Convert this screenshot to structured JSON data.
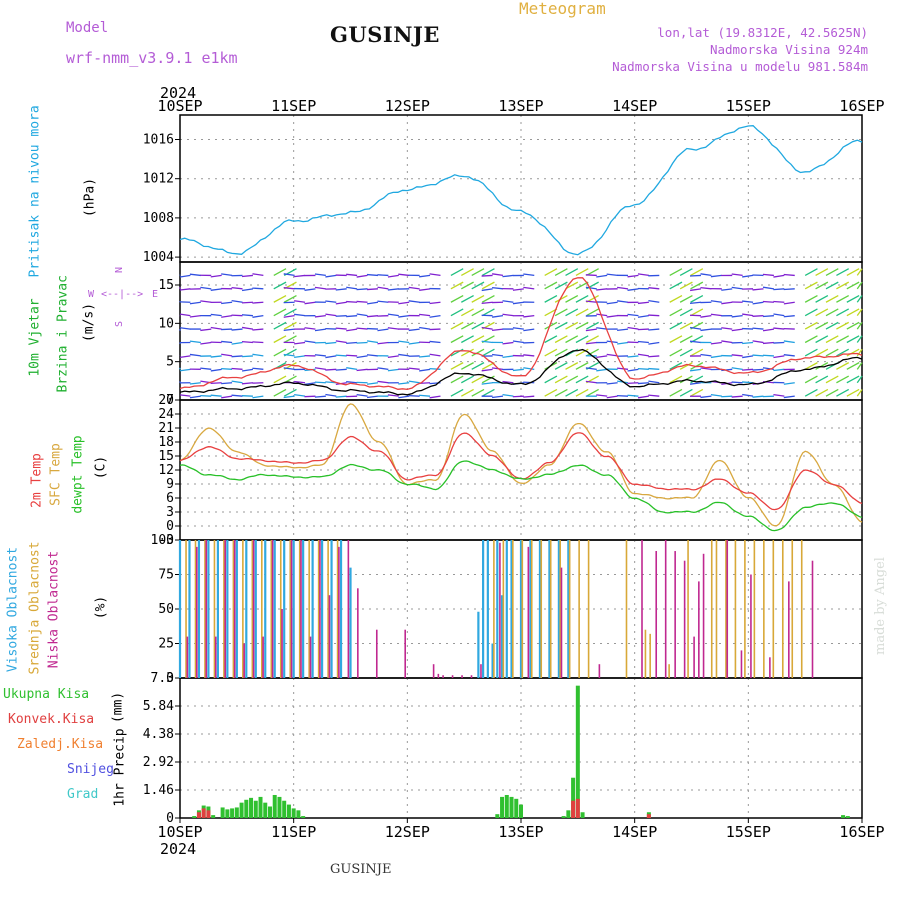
{
  "header": {
    "model_label": "Model",
    "model_value": "wrf-nmm_v3.9.1 e1km",
    "station": "GUSINJE",
    "meteogram": "Meteogram",
    "lonlat": "lon,lat (19.8312E, 42.5625N)",
    "elev": "Nadmorska Visina 924m",
    "elev_model": "Nadmorska Visina u modelu 981.584m",
    "year_top": "2024",
    "year_bottom": "2024",
    "bottom_name": "GUSINJE",
    "credit": "made by Angel"
  },
  "axis_dates": [
    "10SEP",
    "11SEP",
    "12SEP",
    "13SEP",
    "14SEP",
    "15SEP",
    "16SEP"
  ],
  "panel_labels": {
    "pressure": [
      "Pritisak na nivou mora",
      "(hPa)"
    ],
    "wind": [
      "10m Vjetar",
      "Brzina i Pravac",
      "(m/s)"
    ],
    "compass": [
      "N",
      "W",
      "E",
      "S"
    ],
    "temp": [
      "2m Temp",
      "SFC Temp",
      "dewpt Temp",
      "(C)"
    ],
    "cloud": [
      "Visoka Oblacnost",
      "Srednja Oblacnost",
      "Niska Oblacnost",
      "(%)"
    ],
    "precip": [
      "1hr Precip",
      "(mm)"
    ],
    "precip_legend": [
      "Ukupna Kisa",
      "Konvek.Kisa",
      "Zaledj.Kisa",
      "Snijeg",
      "Grad"
    ]
  },
  "colors": {
    "pressure": "#20a8e0",
    "temp2m": "#e84040",
    "sfc": "#d8a840",
    "dew": "#28c028",
    "high": "#30a8e0",
    "mid": "#d8a838",
    "low": "#c02890",
    "total": "#30c030",
    "convective": "#e04040",
    "freezing": "#f08030",
    "snow": "#5050e0",
    "hail": "#40c8c8",
    "wind_speed": "#000000",
    "wind_gust": "#e84040"
  },
  "chart_data": [
    {
      "type": "line",
      "title": "",
      "ylabel": "Pritisak na nivou mora (hPa)",
      "ylim": [
        1003.5,
        1018.5
      ],
      "yticks": [
        1004,
        1008,
        1012,
        1016
      ],
      "grid": true,
      "x_unit": "hours from 10SEP 00",
      "x": [
        0,
        12,
        24,
        36,
        48,
        60,
        72,
        84,
        96,
        108,
        120,
        132,
        144
      ],
      "series": [
        {
          "values": [
            1005.8,
            1004.4,
            1007.7,
            1008.5,
            1010.9,
            1012.3,
            1008.6,
            1004.3,
            1009.4,
            1015.0,
            1017.3,
            1012.7,
            1015.9
          ]
        }
      ]
    },
    {
      "type": "line",
      "title": "",
      "ylabel": "10m Vjetar Brzina i Pravac (m/s)",
      "ylim": [
        0,
        18
      ],
      "yticks": [
        0,
        5,
        10,
        15
      ],
      "grid": true,
      "x": [
        0,
        12,
        24,
        36,
        48,
        60,
        72,
        84,
        96,
        108,
        120,
        132,
        144
      ],
      "series": [
        {
          "values": [
            1.0,
            1.5,
            2.2,
            1.2,
            0.8,
            3.5,
            2.0,
            6.5,
            1.8,
            2.5,
            2.0,
            4.0,
            5.5
          ]
        },
        {
          "values": [
            1.5,
            3.0,
            4.5,
            2.0,
            1.5,
            6.5,
            3.0,
            16.0,
            2.8,
            4.5,
            3.5,
            5.5,
            6.0
          ]
        }
      ]
    },
    {
      "type": "line",
      "title": "",
      "ylabel": "Temp (C)",
      "ylim": [
        -3,
        27
      ],
      "yticks": [
        -3,
        0,
        3,
        6,
        9,
        12,
        15,
        18,
        21,
        24,
        27
      ],
      "grid": true,
      "x": [
        0,
        6,
        12,
        18,
        24,
        30,
        36,
        42,
        48,
        54,
        60,
        66,
        72,
        78,
        84,
        90,
        96,
        102,
        108,
        114,
        120,
        126,
        132,
        138,
        144
      ],
      "series": [
        {
          "name": "2m Temp",
          "values": [
            14,
            17,
            14.5,
            14,
            13.5,
            14,
            19,
            16,
            10,
            11,
            20,
            15,
            10,
            13.5,
            20,
            15,
            9,
            8,
            7.8,
            10,
            7,
            3.5,
            12,
            9,
            5
          ]
        },
        {
          "name": "SFC Temp",
          "values": [
            14,
            21,
            16,
            13,
            12.5,
            13,
            26,
            18,
            9,
            10,
            24,
            16,
            9,
            13,
            22,
            16,
            7,
            6,
            6,
            14,
            6,
            0,
            16,
            9,
            1
          ]
        },
        {
          "name": "dewpt Temp",
          "values": [
            13,
            11,
            10,
            11,
            10.5,
            10.5,
            13,
            12,
            9,
            8,
            14,
            12,
            10,
            11,
            13,
            11,
            6,
            3,
            3,
            5,
            2,
            -1,
            4,
            5,
            2
          ]
        }
      ]
    },
    {
      "type": "bar",
      "title": "",
      "ylabel": "Oblacnost (%)",
      "ylim": [
        0,
        100
      ],
      "yticks": [
        0,
        25,
        50,
        75,
        100
      ],
      "grid": true,
      "series": [
        {
          "name": "Visoka Oblacnost",
          "x": [
            0,
            2,
            4,
            6,
            8,
            10,
            12,
            14,
            16,
            18,
            20,
            22,
            24,
            26,
            28,
            30,
            32,
            34,
            36,
            63,
            64,
            65,
            66,
            67,
            68,
            69,
            70,
            72,
            74,
            76,
            78,
            80,
            82
          ],
          "values": [
            100,
            100,
            100,
            100,
            100,
            100,
            100,
            100,
            100,
            100,
            100,
            100,
            100,
            100,
            100,
            100,
            100,
            100,
            80,
            48,
            100,
            100,
            25,
            100,
            60,
            100,
            100,
            100,
            100,
            100,
            100,
            100,
            100
          ]
        },
        {
          "name": "Srednja Oblacnost",
          "x": [
            1,
            3,
            5,
            7,
            9,
            11,
            13,
            15,
            17,
            19,
            21,
            23,
            25,
            27,
            29,
            31,
            33,
            66,
            68,
            70,
            72,
            74,
            76,
            78,
            80,
            82,
            84,
            86,
            94,
            98,
            99,
            103,
            107,
            112,
            113,
            115,
            117,
            119,
            121,
            123,
            125,
            127,
            129,
            131
          ],
          "values": [
            100,
            100,
            100,
            100,
            100,
            100,
            100,
            100,
            100,
            100,
            100,
            100,
            100,
            100,
            100,
            100,
            100,
            100,
            100,
            100,
            100,
            100,
            100,
            100,
            100,
            100,
            100,
            100,
            100,
            35,
            32,
            10,
            100,
            100,
            100,
            100,
            100,
            100,
            100,
            100,
            100,
            100,
            100,
            100
          ]
        },
        {
          "name": "Niska Oblacnost",
          "x": [
            1,
            3,
            5,
            7,
            9,
            11,
            13,
            15,
            17,
            19,
            21,
            23,
            25,
            27,
            29,
            31,
            33,
            35,
            37,
            41,
            47,
            53,
            54,
            55,
            57,
            59,
            61,
            63,
            67,
            73,
            80,
            88,
            97,
            100,
            102,
            104,
            106,
            108,
            109,
            110,
            115,
            118,
            120,
            124,
            128,
            133
          ],
          "values": [
            30,
            95,
            100,
            30,
            100,
            100,
            25,
            100,
            30,
            100,
            50,
            100,
            100,
            30,
            100,
            60,
            95,
            100,
            65,
            35,
            35,
            10,
            3,
            2,
            2,
            2,
            2,
            10,
            98,
            95,
            80,
            10,
            100,
            92,
            100,
            92,
            85,
            30,
            70,
            90,
            100,
            20,
            75,
            15,
            70,
            85
          ]
        }
      ]
    },
    {
      "type": "bar",
      "title": "",
      "ylabel": "1hr Precip (mm)",
      "ylim": [
        0,
        7.3
      ],
      "yticks": [
        0,
        1.46,
        2.92,
        4.38,
        5.84,
        7.3
      ],
      "grid": true,
      "series": [
        {
          "name": "Ukupna Kisa",
          "x": [
            3,
            4,
            5,
            6,
            7,
            9,
            10,
            11,
            12,
            13,
            14,
            15,
            16,
            17,
            18,
            19,
            20,
            21,
            22,
            23,
            24,
            25,
            26,
            67,
            68,
            69,
            70,
            71,
            72,
            81,
            82,
            83,
            84,
            85,
            99,
            140,
            141
          ],
          "values": [
            0.1,
            0.4,
            0.65,
            0.6,
            0.15,
            0.55,
            0.45,
            0.5,
            0.55,
            0.8,
            0.95,
            1.05,
            0.9,
            1.1,
            0.8,
            0.6,
            1.2,
            1.1,
            0.9,
            0.7,
            0.5,
            0.4,
            0.1,
            0.2,
            1.1,
            1.2,
            1.1,
            1.0,
            0.7,
            0.1,
            0.4,
            2.1,
            6.9,
            0.3,
            0.3,
            0.15,
            0.1
          ]
        },
        {
          "name": "Konvek.Kisa",
          "x": [
            4,
            5,
            6,
            83,
            84,
            99
          ],
          "values": [
            0.3,
            0.5,
            0.4,
            0.9,
            1.0,
            0.2
          ]
        }
      ]
    }
  ]
}
